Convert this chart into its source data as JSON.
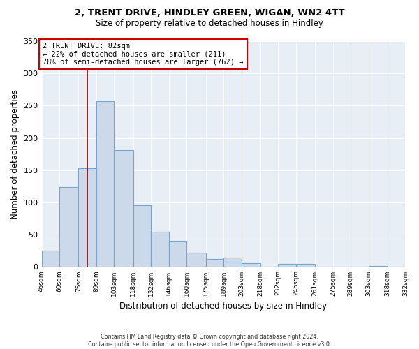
{
  "title": "2, TRENT DRIVE, HINDLEY GREEN, WIGAN, WN2 4TT",
  "subtitle": "Size of property relative to detached houses in Hindley",
  "xlabel": "Distribution of detached houses by size in Hindley",
  "ylabel": "Number of detached properties",
  "bar_color": "#ccd9ea",
  "bar_edge_color": "#7aa3c8",
  "property_line_color": "#8b0000",
  "property_size": 82,
  "annotation_line1": "2 TRENT DRIVE: 82sqm",
  "annotation_line2": "← 22% of detached houses are smaller (211)",
  "annotation_line3": "78% of semi-detached houses are larger (762) →",
  "bin_edges": [
    46,
    60,
    75,
    89,
    103,
    118,
    132,
    146,
    160,
    175,
    189,
    203,
    218,
    232,
    246,
    261,
    275,
    289,
    303,
    318,
    332
  ],
  "bin_counts": [
    25,
    124,
    153,
    257,
    181,
    96,
    55,
    40,
    22,
    12,
    14,
    6,
    0,
    5,
    5,
    0,
    0,
    0,
    2,
    0
  ],
  "footnote1": "Contains HM Land Registry data © Crown copyright and database right 2024.",
  "footnote2": "Contains public sector information licensed under the Open Government Licence v3.0.",
  "ylim": [
    0,
    350
  ],
  "background_color": "#e8eef5"
}
